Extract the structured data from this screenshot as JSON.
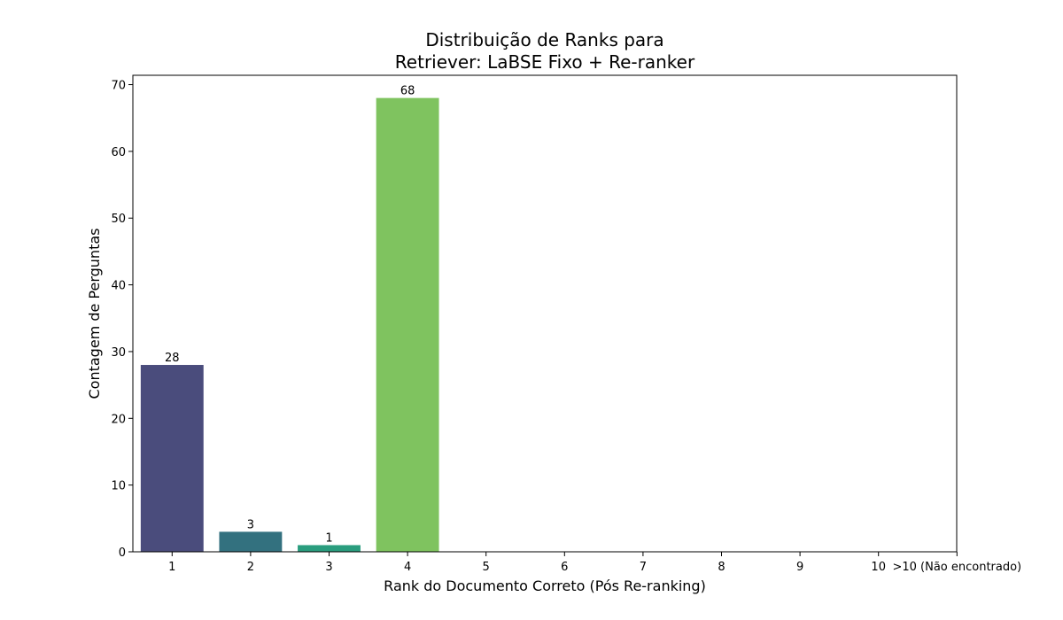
{
  "chart_data": {
    "type": "bar",
    "title": "Distribuição de Ranks para\nRetriever: LaBSE Fixo + Re-ranker",
    "x_label": "Rank do Documento Correto (Pós Re-ranking)",
    "y_label": "Contagem de Perguntas",
    "categories": [
      "1",
      "2",
      "3",
      "4",
      "5",
      "6",
      "7",
      "8",
      "9",
      "10",
      ">10 (Não encontrado)"
    ],
    "values": [
      28,
      3,
      1,
      68,
      null,
      null,
      null,
      null,
      null,
      null,
      null
    ],
    "colors": [
      "#4a4c7c",
      "#33717f",
      "#2a9d7e",
      "#7fc35f"
    ],
    "ylim": [
      0,
      71.4
    ],
    "yticks": [
      0,
      10,
      20,
      30,
      40,
      50,
      60,
      70
    ]
  }
}
